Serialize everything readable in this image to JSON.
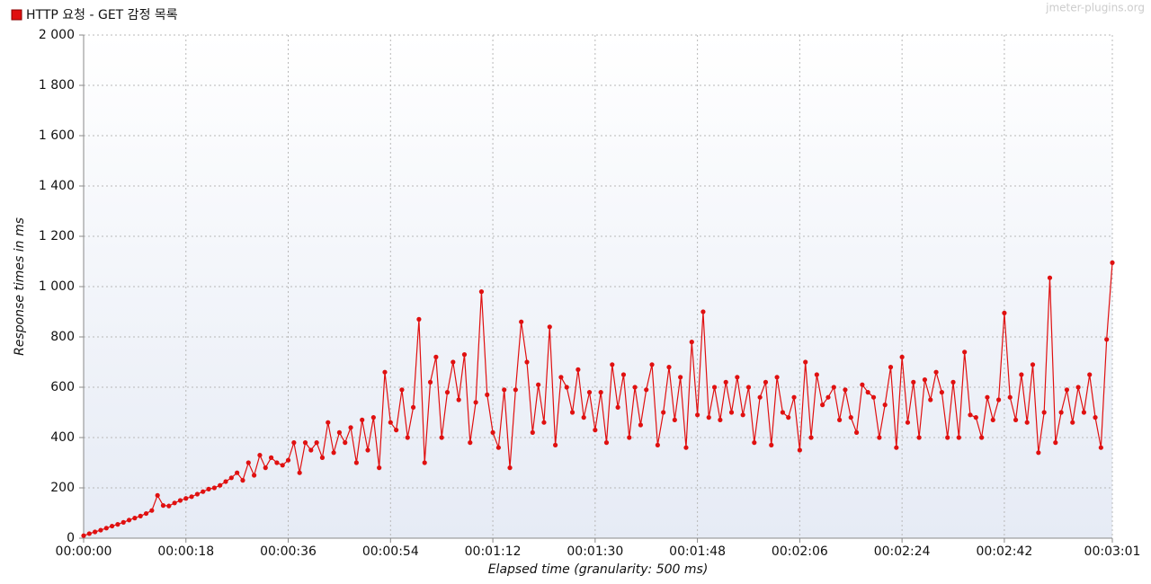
{
  "chart_data": {
    "type": "line",
    "legend_label": "HTTP 요청 - GET 감정 목록",
    "watermark": "jmeter-plugins.org",
    "y_label": "Response times in ms",
    "x_label": "Elapsed time (granularity: 500 ms)",
    "grid": true,
    "legend_position": "top-left",
    "xlim": [
      0,
      181
    ],
    "xticks": [
      {
        "value": 0,
        "label": "00:00:00"
      },
      {
        "value": 18,
        "label": "00:00:18"
      },
      {
        "value": 36,
        "label": "00:00:36"
      },
      {
        "value": 54,
        "label": "00:00:54"
      },
      {
        "value": 72,
        "label": "00:01:12"
      },
      {
        "value": 90,
        "label": "00:01:30"
      },
      {
        "value": 108,
        "label": "00:01:48"
      },
      {
        "value": 126,
        "label": "00:02:06"
      },
      {
        "value": 144,
        "label": "00:02:24"
      },
      {
        "value": 162,
        "label": "00:02:42"
      },
      {
        "value": 181,
        "label": "00:03:01"
      }
    ],
    "ylim": [
      0,
      2000
    ],
    "yticks": [
      0,
      200,
      400,
      600,
      800,
      {
        "value": 1000,
        "label": "1 000"
      },
      {
        "value": 1200,
        "label": "1 200"
      },
      {
        "value": 1400,
        "label": "1 400"
      },
      {
        "value": 1600,
        "label": "1 600"
      },
      {
        "value": 1800,
        "label": "1 800"
      },
      {
        "value": 2000,
        "label": "2 000"
      }
    ],
    "x": [
      0,
      1,
      2,
      3,
      4,
      5,
      6,
      7,
      8,
      9,
      10,
      11,
      12,
      13,
      14,
      15,
      16,
      17,
      18,
      19,
      20,
      21,
      22,
      23,
      24,
      25,
      26,
      27,
      28,
      29,
      30,
      31,
      32,
      33,
      34,
      35,
      36,
      37,
      38,
      39,
      40,
      41,
      42,
      43,
      44,
      45,
      46,
      47,
      48,
      49,
      50,
      51,
      52,
      53,
      54,
      55,
      56,
      57,
      58,
      59,
      60,
      61,
      62,
      63,
      64,
      65,
      66,
      67,
      68,
      69,
      70,
      71,
      72,
      73,
      74,
      75,
      76,
      77,
      78,
      79,
      80,
      81,
      82,
      83,
      84,
      85,
      86,
      87,
      88,
      89,
      90,
      91,
      92,
      93,
      94,
      95,
      96,
      97,
      98,
      99,
      100,
      101,
      102,
      103,
      104,
      105,
      106,
      107,
      108,
      109,
      110,
      111,
      112,
      113,
      114,
      115,
      116,
      117,
      118,
      119,
      120,
      121,
      122,
      123,
      124,
      125,
      126,
      127,
      128,
      129,
      130,
      131,
      132,
      133,
      134,
      135,
      136,
      137,
      138,
      139,
      140,
      141,
      142,
      143,
      144,
      145,
      146,
      147,
      148,
      149,
      150,
      151,
      152,
      153,
      154,
      155,
      156,
      157,
      158,
      159,
      160,
      161,
      162,
      163,
      164,
      165,
      166,
      167,
      168,
      169,
      170,
      171,
      172,
      173,
      174,
      175,
      176,
      177,
      178,
      179,
      180,
      181
    ],
    "series": [
      {
        "name": "HTTP 요청 - GET 감정 목록",
        "color": "#e01010",
        "values": [
          10,
          18,
          25,
          32,
          40,
          48,
          55,
          63,
          72,
          80,
          88,
          98,
          110,
          170,
          130,
          128,
          140,
          150,
          158,
          165,
          175,
          185,
          195,
          200,
          210,
          225,
          240,
          260,
          230,
          300,
          250,
          330,
          280,
          320,
          300,
          290,
          310,
          380,
          260,
          380,
          350,
          380,
          320,
          460,
          340,
          420,
          380,
          440,
          300,
          470,
          350,
          480,
          280,
          660,
          460,
          430,
          590,
          400,
          520,
          870,
          300,
          620,
          720,
          400,
          580,
          700,
          550,
          730,
          380,
          540,
          980,
          570,
          420,
          360,
          590,
          280,
          590,
          860,
          700,
          420,
          610,
          460,
          840,
          370,
          640,
          600,
          500,
          670,
          480,
          580,
          430,
          580,
          380,
          690,
          520,
          650,
          400,
          600,
          450,
          590,
          690,
          370,
          500,
          680,
          470,
          640,
          360,
          780,
          490,
          900,
          480,
          600,
          470,
          620,
          500,
          640,
          490,
          600,
          380,
          560,
          620,
          370,
          640,
          500,
          480,
          560,
          350,
          700,
          400,
          650,
          530,
          560,
          600,
          470,
          590,
          480,
          420,
          610,
          580,
          560,
          400,
          530,
          680,
          360,
          720,
          460,
          620,
          400,
          630,
          550,
          660,
          580,
          400,
          620,
          400,
          740,
          490,
          480,
          400,
          560,
          470,
          550,
          895,
          560,
          470,
          650,
          460,
          690,
          340,
          500,
          1035,
          380,
          500,
          590,
          460,
          600,
          500,
          650,
          480,
          360,
          790,
          1095
        ]
      }
    ]
  }
}
